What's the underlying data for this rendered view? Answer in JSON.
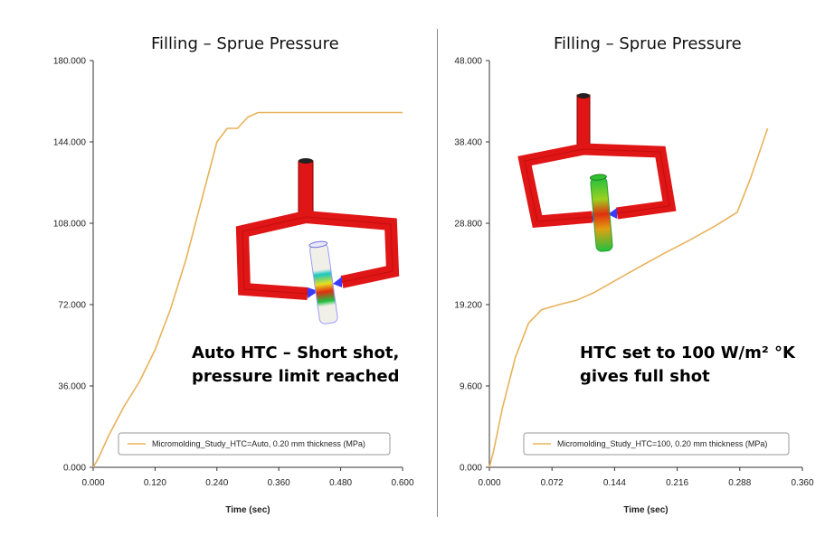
{
  "colors": {
    "series": "#e8b25a",
    "axis": "#333333",
    "part_red": "#e01515",
    "part_gate": "#3a3aff"
  },
  "icons": [
    "mold-part-icon-auto",
    "mold-part-icon-100"
  ],
  "chart_data": [
    {
      "type": "line",
      "title": "Filling – Sprue Pressure",
      "xlabel": "Time (sec)",
      "ylabel": "",
      "xlim": [
        0,
        0.6
      ],
      "ylim": [
        0,
        180
      ],
      "xticks": [
        "0.000",
        "0.120",
        "0.240",
        "0.360",
        "0.480",
        "0.600"
      ],
      "yticks": [
        "0.000",
        "36.000",
        "72.000",
        "108.000",
        "144.000",
        "180.000"
      ],
      "grid": false,
      "legend": "bottom",
      "annotation": [
        "Auto HTC – Short shot,",
        "pressure limit reached"
      ],
      "series": [
        {
          "name": "Micromolding_Study_HTC=Auto, 0.20 mm thickness (MPa)",
          "x": [
            0.0,
            0.01,
            0.03,
            0.06,
            0.09,
            0.12,
            0.15,
            0.18,
            0.21,
            0.24,
            0.26,
            0.28,
            0.3,
            0.32,
            0.6
          ],
          "y": [
            0,
            4,
            14,
            27,
            38,
            52,
            70,
            92,
            118,
            144,
            150,
            150,
            155,
            157,
            157
          ]
        }
      ]
    },
    {
      "type": "line",
      "title": "Filling – Sprue Pressure",
      "xlabel": "Time (sec)",
      "ylabel": "",
      "xlim": [
        0,
        0.36
      ],
      "ylim": [
        0,
        48
      ],
      "xticks": [
        "0.000",
        "0.072",
        "0.144",
        "0.216",
        "0.288",
        "0.360"
      ],
      "yticks": [
        "0.000",
        "9.600",
        "19.200",
        "28.800",
        "38.400",
        "48.000"
      ],
      "grid": false,
      "legend": "bottom",
      "annotation": [
        "HTC set to 100 W/m² °K",
        "gives full shot"
      ],
      "series": [
        {
          "name": "Micromolding_Study_HTC=100, 0.20 mm thickness (MPa)",
          "x": [
            0.0,
            0.005,
            0.015,
            0.03,
            0.045,
            0.06,
            0.08,
            0.1,
            0.12,
            0.144,
            0.17,
            0.2,
            0.23,
            0.26,
            0.285,
            0.3,
            0.32
          ],
          "y": [
            0,
            2,
            7,
            13,
            17,
            18.6,
            19.2,
            19.7,
            20.6,
            22,
            23.5,
            25.2,
            26.8,
            28.5,
            30.1,
            34,
            40
          ]
        }
      ]
    }
  ]
}
